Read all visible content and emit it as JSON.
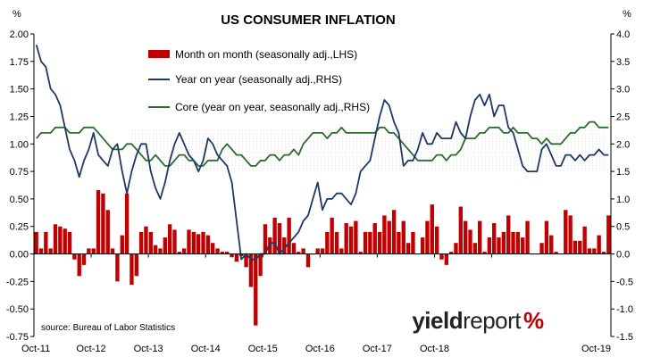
{
  "chart_data": {
    "type": "bar+line",
    "title": "US CONSUMER INFLATION",
    "left_axis": {
      "unit": "%",
      "min": -0.75,
      "max": 2.0,
      "step": 0.25,
      "ticks": [
        "2.00",
        "1.75",
        "1.50",
        "1.25",
        "1.00",
        "0.75",
        "0.50",
        "0.25",
        "0.00",
        "-0.25",
        "-0.50",
        "-0.75"
      ]
    },
    "right_axis": {
      "unit": "%",
      "min": -1.5,
      "max": 4.0,
      "step": 0.5,
      "ticks": [
        "4.0",
        "3.5",
        "3.0",
        "2.5",
        "2.0",
        "1.5",
        "1.0",
        "0.5",
        "0.0",
        "-0.5",
        "-1.0",
        "-1.5"
      ]
    },
    "x_axis": {
      "labels": [
        "Oct-11",
        "Oct-12",
        "Oct-13",
        "Oct-14",
        "Oct-15",
        "Oct-16",
        "Oct-17",
        "Oct-18",
        "Oct-19"
      ]
    },
    "target_band": {
      "lhs_min": 0.75,
      "lhs_max": 1.125
    },
    "legend": [
      {
        "label": "Month on month (seasonally adj.,LHS)",
        "kind": "bar",
        "color": "#c00000"
      },
      {
        "label": "Year on year (seasonally adj.,RHS)",
        "kind": "line",
        "color": "#1f3864"
      },
      {
        "label": "Core (year on year, seasonally adj.,RHS)",
        "kind": "line",
        "color": "#2e6b2e"
      }
    ],
    "series": [
      {
        "name": "Month on month",
        "axis": "left",
        "type": "bar",
        "color": "#c00000",
        "values": [
          0.2,
          0.05,
          0.2,
          0.05,
          0.27,
          0.25,
          0.23,
          0.2,
          -0.05,
          -0.2,
          -0.1,
          0.05,
          0.05,
          0.58,
          0.55,
          0.4,
          0.05,
          -0.25,
          0.17,
          0.55,
          -0.28,
          -0.2,
          0.2,
          0.25,
          0.2,
          0.08,
          0.05,
          0.15,
          0.27,
          0.22,
          0.02,
          0.05,
          0.22,
          0.2,
          0.18,
          0.2,
          0.17,
          0.1,
          0.05,
          0.02,
          0.02,
          -0.03,
          -0.07,
          -0.02,
          -0.12,
          -0.3,
          -0.65,
          -0.2,
          0.27,
          0.15,
          0.33,
          0.28,
          0.15,
          0.33,
          0.1,
          0.02,
          0.05,
          -0.12,
          0.0,
          0.05,
          0.05,
          0.2,
          0.33,
          0.2,
          0.05,
          0.28,
          0.25,
          0.3,
          0.02,
          0.2,
          0.2,
          0.28,
          0.2,
          0.35,
          0.3,
          0.4,
          0.2,
          0.3,
          0.1,
          0.2,
          0.0,
          0.15,
          0.3,
          0.45,
          0.25,
          -0.05,
          -0.1,
          0.02,
          0.1,
          0.43,
          0.3,
          0.22,
          0.1,
          0.3,
          0.02,
          0.15,
          0.28,
          0.15,
          0.2,
          0.35,
          0.2,
          0.2,
          0.15,
          0.3,
          0.0,
          0.0,
          0.1,
          0.3,
          0.17,
          0.02,
          0.0,
          0.4,
          0.35,
          0.12,
          0.12,
          0.25,
          0.05,
          0.05,
          0.17,
          0.02,
          0.35
        ]
      },
      {
        "name": "Year on year",
        "axis": "right",
        "type": "line",
        "color": "#1f3864",
        "values": [
          3.8,
          3.5,
          3.4,
          3.0,
          2.9,
          2.7,
          2.3,
          1.9,
          1.7,
          1.4,
          1.7,
          1.9,
          2.2,
          1.8,
          1.7,
          1.6,
          1.9,
          2.0,
          1.5,
          1.1,
          1.5,
          1.8,
          2.0,
          2.0,
          1.5,
          1.2,
          1.0,
          1.3,
          1.7,
          2.0,
          2.2,
          2.0,
          1.8,
          1.7,
          1.5,
          1.7,
          2.1,
          2.0,
          1.8,
          1.7,
          1.6,
          1.3,
          0.6,
          -0.1,
          0.0,
          -0.1,
          -0.1,
          0.0,
          0.0,
          0.2,
          0.2,
          0.0,
          0.1,
          0.2,
          0.3,
          0.4,
          0.6,
          0.7,
          1.0,
          1.3,
          0.8,
          1.0,
          1.0,
          1.1,
          1.1,
          1.0,
          0.9,
          1.1,
          1.5,
          1.6,
          1.7,
          2.1,
          2.5,
          2.8,
          2.7,
          2.4,
          2.2,
          1.6,
          1.7,
          1.7,
          1.9,
          2.2,
          2.0,
          2.0,
          2.2,
          2.1,
          2.1,
          2.1,
          2.4,
          2.2,
          2.1,
          2.5,
          2.8,
          2.9,
          2.7,
          2.9,
          2.5,
          2.7,
          2.7,
          2.3,
          2.2,
          1.9,
          1.6,
          1.5,
          1.5,
          1.5,
          1.9,
          2.0,
          1.8,
          1.6,
          1.6,
          1.8,
          1.8,
          1.7,
          1.8,
          1.7,
          1.8,
          1.8,
          1.9,
          1.8,
          1.8
        ]
      },
      {
        "name": "Core",
        "axis": "right",
        "type": "line",
        "color": "#2e6b2e",
        "values": [
          2.1,
          2.2,
          2.2,
          2.2,
          2.3,
          2.3,
          2.3,
          2.2,
          2.2,
          2.2,
          2.3,
          2.3,
          2.3,
          2.2,
          2.1,
          2.0,
          1.9,
          1.9,
          1.9,
          2.0,
          2.0,
          1.9,
          1.8,
          1.7,
          1.7,
          1.8,
          1.7,
          1.6,
          1.6,
          1.7,
          1.8,
          1.8,
          1.7,
          1.7,
          1.6,
          1.6,
          1.7,
          1.7,
          1.7,
          1.9,
          2.0,
          1.9,
          1.8,
          1.8,
          1.7,
          1.6,
          1.6,
          1.7,
          1.7,
          1.8,
          1.8,
          1.7,
          1.8,
          1.8,
          1.9,
          1.8,
          2.0,
          2.1,
          2.2,
          2.2,
          2.2,
          2.1,
          2.2,
          2.2,
          2.3,
          2.2,
          2.2,
          2.2,
          2.2,
          2.2,
          2.2,
          2.2,
          2.3,
          2.3,
          2.2,
          2.2,
          2.1,
          2.0,
          1.9,
          1.8,
          1.7,
          1.7,
          1.7,
          1.7,
          1.8,
          1.8,
          1.7,
          1.8,
          1.8,
          1.9,
          2.1,
          2.1,
          2.1,
          2.2,
          2.2,
          2.3,
          2.3,
          2.3,
          2.2,
          2.2,
          2.3,
          2.2,
          2.2,
          2.2,
          2.1,
          2.1,
          2.0,
          2.1,
          2.0,
          2.0,
          2.0,
          2.1,
          2.2,
          2.2,
          2.3,
          2.3,
          2.4,
          2.4,
          2.3,
          2.3,
          2.3
        ]
      }
    ],
    "source": "source: Bureau of Labor Statistics"
  },
  "logo": {
    "word": "yield",
    "word_bold": "report",
    "symbol": "%"
  }
}
